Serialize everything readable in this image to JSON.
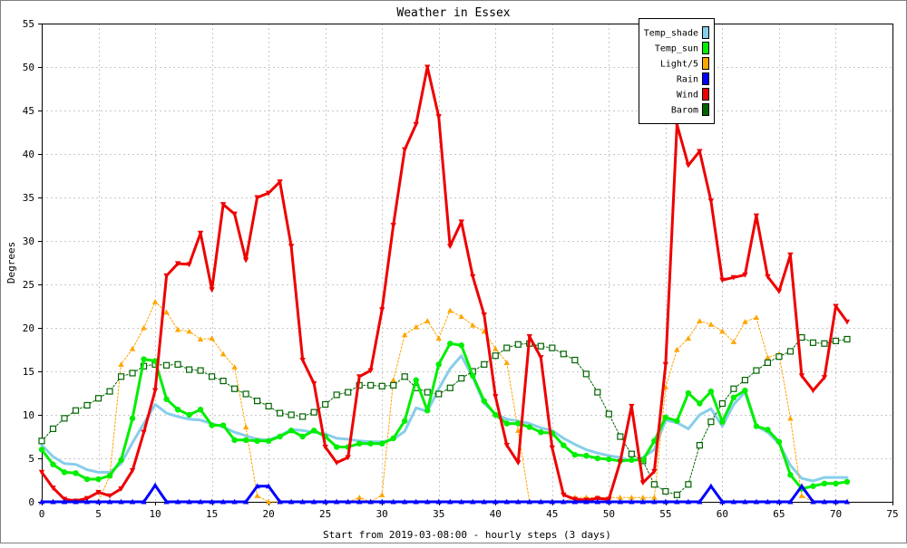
{
  "chart_data": {
    "type": "line",
    "title": "Weather in Essex",
    "xlabel": "Start from 2019-03-08:00 - hourly steps (3 days)",
    "ylabel": "Degrees",
    "xlim": [
      0,
      75
    ],
    "ylim": [
      0,
      55
    ],
    "xticks": [
      0,
      5,
      10,
      15,
      20,
      25,
      30,
      35,
      40,
      45,
      50,
      55,
      60,
      65,
      70,
      75
    ],
    "yticks": [
      0,
      5,
      10,
      15,
      20,
      25,
      30,
      35,
      40,
      45,
      50,
      55
    ],
    "grid": true,
    "legend_position": "top-right",
    "series": [
      {
        "name": "Temp_shade",
        "color": "#87ceeb",
        "marker": "none",
        "width": 3,
        "values": [
          6.5,
          5.2,
          4.4,
          4.3,
          3.7,
          3.4,
          3.4,
          4.4,
          6.8,
          9.0,
          11.2,
          10.2,
          9.8,
          9.5,
          9.4,
          9.0,
          8.6,
          8.0,
          7.6,
          7.2,
          7.1,
          7.6,
          8.3,
          8.2,
          8.0,
          7.8,
          7.3,
          7.2,
          7.0,
          6.9,
          6.9,
          7.2,
          8.1,
          10.8,
          10.4,
          13.0,
          15.3,
          16.8,
          14.3,
          11.3,
          10.1,
          9.5,
          9.3,
          9.0,
          8.5,
          8.2,
          7.3,
          6.6,
          6.0,
          5.6,
          5.3,
          5.1,
          4.7,
          5.1,
          6.0,
          9.4,
          9.1,
          8.4,
          10.0,
          10.7,
          8.7,
          11.2,
          12.6,
          8.7,
          8.0,
          6.7,
          4.2,
          2.7,
          2.4,
          2.8,
          2.8,
          2.8
        ]
      },
      {
        "name": "Temp_sun",
        "color": "#00ee00",
        "marker": "dot",
        "width": 3,
        "values": [
          6.0,
          4.3,
          3.4,
          3.3,
          2.6,
          2.6,
          3.0,
          4.8,
          9.6,
          16.4,
          16.2,
          11.8,
          10.6,
          10.0,
          10.6,
          8.8,
          8.8,
          7.1,
          7.1,
          7.0,
          7.0,
          7.5,
          8.2,
          7.5,
          8.2,
          7.5,
          6.3,
          6.3,
          6.7,
          6.7,
          6.7,
          7.3,
          9.3,
          14.0,
          10.5,
          15.8,
          18.2,
          18.0,
          14.5,
          11.6,
          10.0,
          9.0,
          9.0,
          8.6,
          8.0,
          7.9,
          6.5,
          5.4,
          5.3,
          5.0,
          4.9,
          4.7,
          4.8,
          4.8,
          7.0,
          9.7,
          9.3,
          12.5,
          11.3,
          12.7,
          9.2,
          12.0,
          12.8,
          8.7,
          8.3,
          6.9,
          3.1,
          1.5,
          1.8,
          2.1,
          2.1,
          2.3
        ]
      },
      {
        "name": "Light/5",
        "color": "#ffa500",
        "marker": "triangle-up",
        "width": 1,
        "values": [
          0,
          0,
          0,
          0,
          0,
          0,
          3.0,
          15.8,
          17.6,
          20.0,
          23.0,
          21.8,
          19.8,
          19.6,
          18.7,
          18.8,
          17.0,
          15.5,
          8.6,
          0.7,
          0,
          0,
          0,
          0,
          0,
          0,
          0,
          0,
          0.5,
          0,
          0.8,
          14.0,
          19.2,
          20.1,
          20.8,
          18.8,
          22.0,
          21.3,
          20.3,
          19.6,
          17.6,
          16.0,
          8.2,
          0,
          0,
          0,
          0,
          0.5,
          0.5,
          0.5,
          0.5,
          0.5,
          0.5,
          0.5,
          0.5,
          13.2,
          17.5,
          18.8,
          20.8,
          20.4,
          19.6,
          18.4,
          20.7,
          21.2,
          16.6,
          17.0,
          9.6,
          0.7,
          0,
          0,
          0,
          0
        ]
      },
      {
        "name": "Rain",
        "color": "#0000ff",
        "marker": "triangle-up",
        "width": 3,
        "values": [
          0,
          0,
          0,
          0,
          0,
          0,
          0,
          0,
          0,
          0,
          1.9,
          0,
          0,
          0,
          0,
          0,
          0,
          0,
          0,
          1.8,
          1.8,
          0,
          0,
          0,
          0,
          0,
          0,
          0,
          0,
          0,
          0,
          0,
          0,
          0,
          0,
          0,
          0,
          0,
          0,
          0,
          0,
          0,
          0,
          0,
          0,
          0,
          0,
          0,
          0,
          0,
          0,
          0,
          0,
          0,
          0,
          0,
          0,
          0,
          0,
          1.8,
          0,
          0,
          0,
          0,
          0,
          0,
          0,
          1.8,
          0,
          0,
          0,
          0
        ]
      },
      {
        "name": "Wind",
        "color": "#ee0000",
        "marker": "triangle-down",
        "width": 3,
        "values": [
          3.4,
          1.6,
          0.3,
          0.1,
          0.4,
          1.1,
          0.7,
          1.5,
          3.6,
          8.0,
          12.8,
          26.0,
          27.4,
          27.3,
          30.9,
          24.4,
          34.2,
          33.1,
          27.8,
          35.0,
          35.5,
          36.8,
          29.4,
          16.3,
          13.6,
          6.3,
          4.5,
          5.1,
          14.4,
          15.1,
          22.1,
          31.8,
          40.5,
          43.4,
          50.0,
          44.3,
          29.4,
          32.2,
          25.9,
          21.5,
          12.1,
          6.5,
          4.5,
          19.0,
          16.6,
          6.2,
          0.8,
          0.3,
          0.2,
          0.4,
          0.3,
          4.6,
          11.0,
          2.2,
          3.5,
          15.8,
          43.4,
          38.7,
          40.3,
          34.6,
          25.5,
          25.8,
          26.1,
          32.9,
          25.9,
          24.2,
          28.4,
          14.5,
          12.8,
          14.3,
          22.5,
          20.7
        ]
      },
      {
        "name": "Barom",
        "color": "#006400",
        "marker": "square",
        "width": 1,
        "values": [
          7.0,
          8.4,
          9.6,
          10.5,
          11.1,
          11.9,
          12.7,
          14.4,
          14.8,
          15.6,
          15.8,
          15.7,
          15.8,
          15.2,
          15.1,
          14.4,
          13.9,
          13.0,
          12.4,
          11.6,
          11.0,
          10.2,
          10.0,
          9.8,
          10.3,
          11.2,
          12.3,
          12.6,
          13.4,
          13.4,
          13.3,
          13.4,
          14.4,
          13.1,
          12.6,
          12.4,
          13.1,
          14.2,
          15.0,
          15.8,
          16.8,
          17.7,
          18.1,
          18.2,
          17.9,
          17.7,
          17.0,
          16.3,
          14.7,
          12.6,
          10.1,
          7.5,
          5.5,
          4.7,
          2.0,
          1.2,
          0.8,
          2.0,
          6.5,
          9.2,
          11.3,
          13.0,
          14.0,
          15.1,
          16.0,
          16.7,
          17.3,
          18.9,
          18.3,
          18.2,
          18.5,
          18.7
        ]
      }
    ]
  }
}
